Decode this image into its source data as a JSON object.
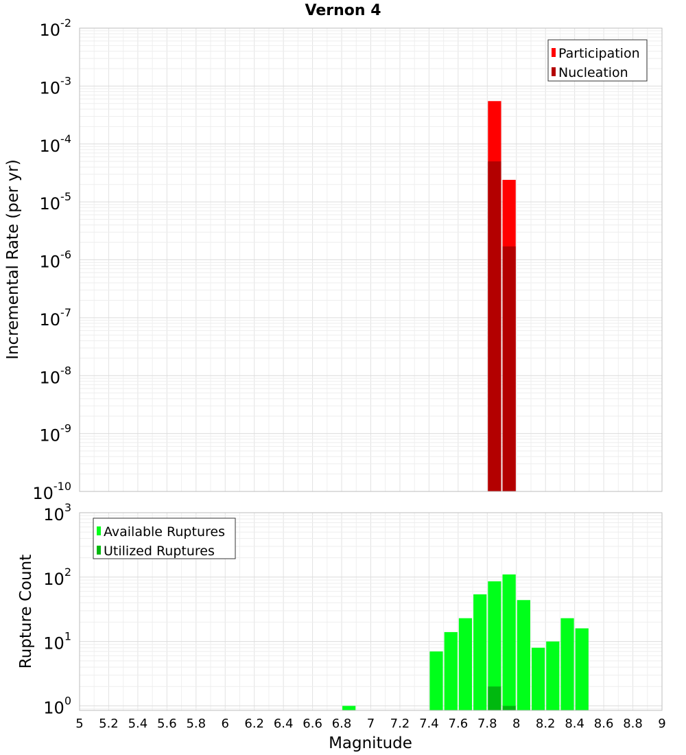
{
  "chart_data": [
    {
      "type": "bar",
      "title": "Vernon 4",
      "ylabel": "Incremental Rate (per yr)",
      "yscale": "log",
      "ylim_exp": [
        -10,
        -2
      ],
      "ytick_exponents": [
        "-10",
        "-9",
        "-8",
        "-7",
        "-6",
        "-5",
        "-4",
        "-3",
        "-2"
      ],
      "grid": true,
      "legend_position": "top-right",
      "bin_width": 0.1,
      "series": [
        {
          "name": "Participation",
          "color": "#ff0000",
          "x": [
            7.85,
            7.95
          ],
          "values": [
            0.00055,
            2.4e-05
          ]
        },
        {
          "name": "Nucleation",
          "color": "#b30000",
          "x": [
            7.85,
            7.95
          ],
          "values": [
            5e-05,
            1.7e-06
          ]
        }
      ]
    },
    {
      "type": "bar",
      "xlabel": "Magnitude",
      "ylabel": "Rupture Count",
      "yscale": "log",
      "ylim_exp": [
        -0.07,
        3
      ],
      "ytick_exponents": [
        "0",
        "1",
        "2",
        "3"
      ],
      "xlim": [
        5,
        9
      ],
      "xtick_labels": [
        "5",
        "5.2",
        "5.4",
        "5.6",
        "5.8",
        "6",
        "6.2",
        "6.4",
        "6.6",
        "6.8",
        "7",
        "7.2",
        "7.4",
        "7.6",
        "7.8",
        "8",
        "8.2",
        "8.4",
        "8.6",
        "8.8",
        "9"
      ],
      "grid": true,
      "legend_position": "top-left",
      "bin_width": 0.1,
      "series": [
        {
          "name": "Available Ruptures",
          "color": "#00ff1a",
          "x": [
            6.85,
            7.45,
            7.55,
            7.65,
            7.75,
            7.85,
            7.95,
            8.05,
            8.15,
            8.25,
            8.35,
            8.45
          ],
          "values": [
            1,
            7,
            14,
            23,
            54,
            86,
            110,
            44,
            8,
            10,
            23,
            16
          ]
        },
        {
          "name": "Utilized Ruptures",
          "color": "#00b80f",
          "x": [
            7.85,
            7.95
          ],
          "values": [
            2,
            1
          ]
        }
      ]
    }
  ]
}
